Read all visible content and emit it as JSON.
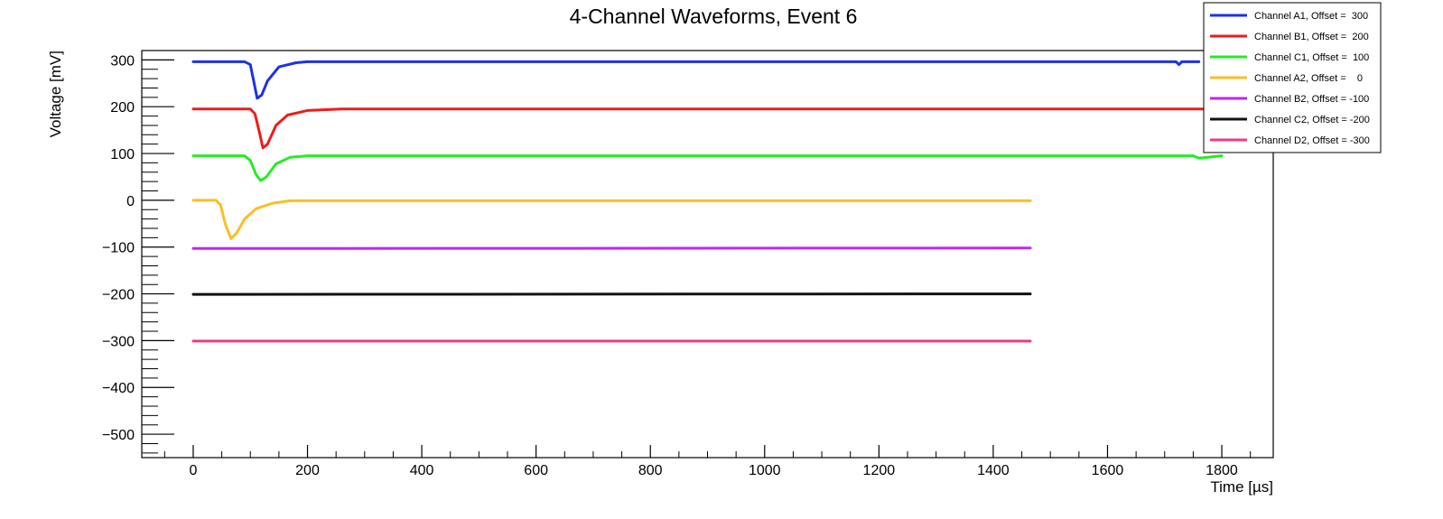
{
  "chart_data": {
    "type": "line",
    "title": "4-Channel Waveforms, Event 6",
    "xlabel": "Time [µs]",
    "ylabel": "Voltage [mV]",
    "xlim": [
      -90,
      1890
    ],
    "ylim": [
      -550,
      320
    ],
    "x_ticks": [
      0,
      200,
      400,
      600,
      800,
      1000,
      1200,
      1400,
      1600,
      1800
    ],
    "y_ticks": [
      300,
      200,
      100,
      0,
      -100,
      -200,
      -300,
      -400,
      -500
    ],
    "grid": false,
    "legend_position": "top-right",
    "series": [
      {
        "name": "Channel A1, Offset =  300",
        "color": "#1a33e6",
        "points": [
          [
            0,
            296
          ],
          [
            90,
            296
          ],
          [
            100,
            290
          ],
          [
            105,
            260
          ],
          [
            112,
            218
          ],
          [
            120,
            225
          ],
          [
            130,
            255
          ],
          [
            150,
            285
          ],
          [
            180,
            294
          ],
          [
            200,
            296
          ],
          [
            1720,
            296
          ],
          [
            1725,
            290
          ],
          [
            1730,
            296
          ],
          [
            1760,
            296
          ]
        ]
      },
      {
        "name": "Channel B1, Offset =  200",
        "color": "#ee1c1c",
        "points": [
          [
            0,
            195
          ],
          [
            100,
            195
          ],
          [
            108,
            185
          ],
          [
            115,
            150
          ],
          [
            122,
            112
          ],
          [
            130,
            120
          ],
          [
            145,
            160
          ],
          [
            165,
            182
          ],
          [
            200,
            192
          ],
          [
            260,
            195
          ],
          [
            1800,
            195
          ]
        ]
      },
      {
        "name": "Channel C1, Offset =  100",
        "color": "#22ee22",
        "points": [
          [
            0,
            95
          ],
          [
            90,
            95
          ],
          [
            100,
            85
          ],
          [
            110,
            55
          ],
          [
            118,
            42
          ],
          [
            128,
            50
          ],
          [
            145,
            78
          ],
          [
            170,
            92
          ],
          [
            200,
            95
          ],
          [
            1750,
            95
          ],
          [
            1760,
            90
          ],
          [
            1800,
            95
          ]
        ]
      },
      {
        "name": "Channel A2, Offset =    0",
        "color": "#fbbf24",
        "points": [
          [
            0,
            0
          ],
          [
            40,
            0
          ],
          [
            48,
            -10
          ],
          [
            56,
            -50
          ],
          [
            66,
            -82
          ],
          [
            76,
            -70
          ],
          [
            90,
            -40
          ],
          [
            110,
            -18
          ],
          [
            140,
            -6
          ],
          [
            170,
            -1
          ],
          [
            1465,
            -1
          ]
        ]
      },
      {
        "name": "Channel B2, Offset = -100",
        "color": "#c026f2",
        "points": [
          [
            0,
            -103
          ],
          [
            1465,
            -102
          ]
        ]
      },
      {
        "name": "Channel C2, Offset = -200",
        "color": "#111111",
        "points": [
          [
            0,
            -201
          ],
          [
            1465,
            -200
          ]
        ]
      },
      {
        "name": "Channel D2, Offset = -300",
        "color": "#ef3a86",
        "points": [
          [
            0,
            -301
          ],
          [
            1465,
            -301
          ]
        ]
      }
    ]
  }
}
